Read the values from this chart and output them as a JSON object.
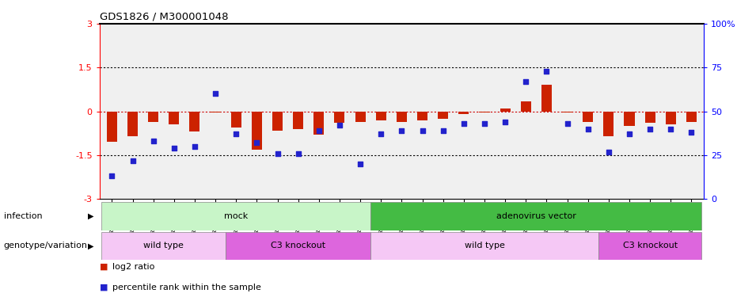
{
  "title": "GDS1826 / M300001048",
  "samples": [
    "GSM87316",
    "GSM87317",
    "GSM93998",
    "GSM93999",
    "GSM94000",
    "GSM94001",
    "GSM93633",
    "GSM93634",
    "GSM93651",
    "GSM93652",
    "GSM93653",
    "GSM93654",
    "GSM93657",
    "GSM86643",
    "GSM87306",
    "GSM87307",
    "GSM87308",
    "GSM87309",
    "GSM87310",
    "GSM87311",
    "GSM87312",
    "GSM87313",
    "GSM87314",
    "GSM87315",
    "GSM93655",
    "GSM93656",
    "GSM93658",
    "GSM93659",
    "GSM93660"
  ],
  "log2_ratio": [
    -1.05,
    -0.85,
    -0.35,
    -0.45,
    -0.7,
    -0.05,
    -0.55,
    -1.3,
    -0.65,
    -0.6,
    -0.8,
    -0.4,
    -0.35,
    -0.3,
    -0.35,
    -0.3,
    -0.25,
    -0.1,
    -0.05,
    0.1,
    0.35,
    0.9,
    -0.05,
    -0.35,
    -0.85,
    -0.5,
    -0.4,
    -0.45,
    -0.35
  ],
  "percentile_rank": [
    13,
    22,
    33,
    29,
    30,
    60,
    37,
    32,
    26,
    26,
    39,
    42,
    20,
    37,
    39,
    39,
    39,
    43,
    43,
    44,
    67,
    73,
    43,
    40,
    27,
    37,
    40,
    40,
    38
  ],
  "infection_groups": [
    {
      "label": "mock",
      "start": 0,
      "end": 12,
      "color": "#c8f5c8"
    },
    {
      "label": "adenovirus vector",
      "start": 13,
      "end": 28,
      "color": "#44bb44"
    }
  ],
  "genotype_groups": [
    {
      "label": "wild type",
      "start": 0,
      "end": 5,
      "color": "#f5c8f5"
    },
    {
      "label": "C3 knockout",
      "start": 6,
      "end": 12,
      "color": "#dd66dd"
    },
    {
      "label": "wild type",
      "start": 13,
      "end": 23,
      "color": "#f5c8f5"
    },
    {
      "label": "C3 knockout",
      "start": 24,
      "end": 28,
      "color": "#dd66dd"
    }
  ],
  "ylim": [
    -3,
    3
  ],
  "yticks_left": [
    -3,
    -1.5,
    0,
    1.5,
    3
  ],
  "yticks_right_labels": [
    "0",
    "25",
    "50",
    "75",
    "100%"
  ],
  "bar_color_red": "#cc2200",
  "bar_color_blue": "#2222cc",
  "zero_line_color": "#cc0000",
  "infection_label": "infection",
  "genotype_label": "genotype/variation",
  "legend_red": "log2 ratio",
  "legend_blue": "percentile rank within the sample",
  "bg_color": "#f0f0f0"
}
